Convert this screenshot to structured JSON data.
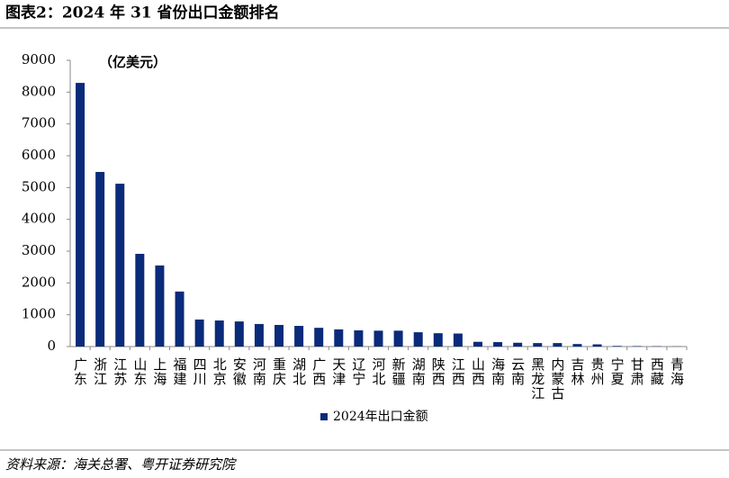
{
  "chart_data": {
    "type": "bar",
    "title": "图表2：2024 年 31 省份出口金额排名",
    "annotation": "（亿美元）",
    "source": "资料来源：海关总署、粤开证券研究院",
    "categories": [
      "广东",
      "浙江",
      "江苏",
      "山东",
      "上海",
      "福建",
      "四川",
      "北京",
      "安徽",
      "河南",
      "重庆",
      "湖北",
      "广西",
      "天津",
      "辽宁",
      "河北",
      "新疆",
      "湖南",
      "陕西",
      "江西",
      "山西",
      "海南",
      "云南",
      "黑龙江",
      "内蒙古",
      "吉林",
      "贵州",
      "宁夏",
      "甘肃",
      "西藏",
      "青海"
    ],
    "series": [
      {
        "name": "2024年出口金额",
        "color": "#0a2a7a",
        "values": [
          8290,
          5490,
          5120,
          2915,
          2550,
          1730,
          850,
          820,
          790,
          710,
          680,
          650,
          590,
          540,
          510,
          500,
          500,
          450,
          420,
          410,
          150,
          140,
          120,
          110,
          110,
          80,
          70,
          20,
          15,
          10,
          5
        ]
      }
    ],
    "ylim": [
      0,
      9000
    ],
    "yticks": [
      0,
      1000,
      2000,
      3000,
      4000,
      5000,
      6000,
      7000,
      8000,
      9000
    ],
    "legend": "bottom-left",
    "grid": false
  }
}
